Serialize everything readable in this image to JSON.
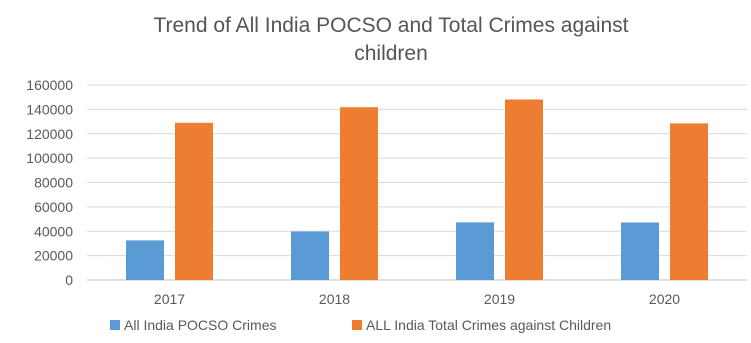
{
  "chart_data": {
    "type": "bar",
    "title_lines": [
      "Trend of All India POCSO and Total Crimes against",
      "children"
    ],
    "categories": [
      "2017",
      "2018",
      "2019",
      "2020"
    ],
    "series": [
      {
        "name": "All India POCSO Crimes",
        "color": "#5B9BD5",
        "values": [
          32500,
          39800,
          47300,
          47200
        ]
      },
      {
        "name": "ALL India Total Crimes against Children",
        "color": "#ED7D31",
        "values": [
          129000,
          141800,
          148100,
          128500
        ]
      }
    ],
    "ylim": [
      0,
      160000
    ],
    "yticks": [
      "0",
      "20000",
      "40000",
      "60000",
      "80000",
      "100000",
      "120000",
      "140000",
      "160000"
    ],
    "grid": true,
    "legend_position": "bottom"
  }
}
